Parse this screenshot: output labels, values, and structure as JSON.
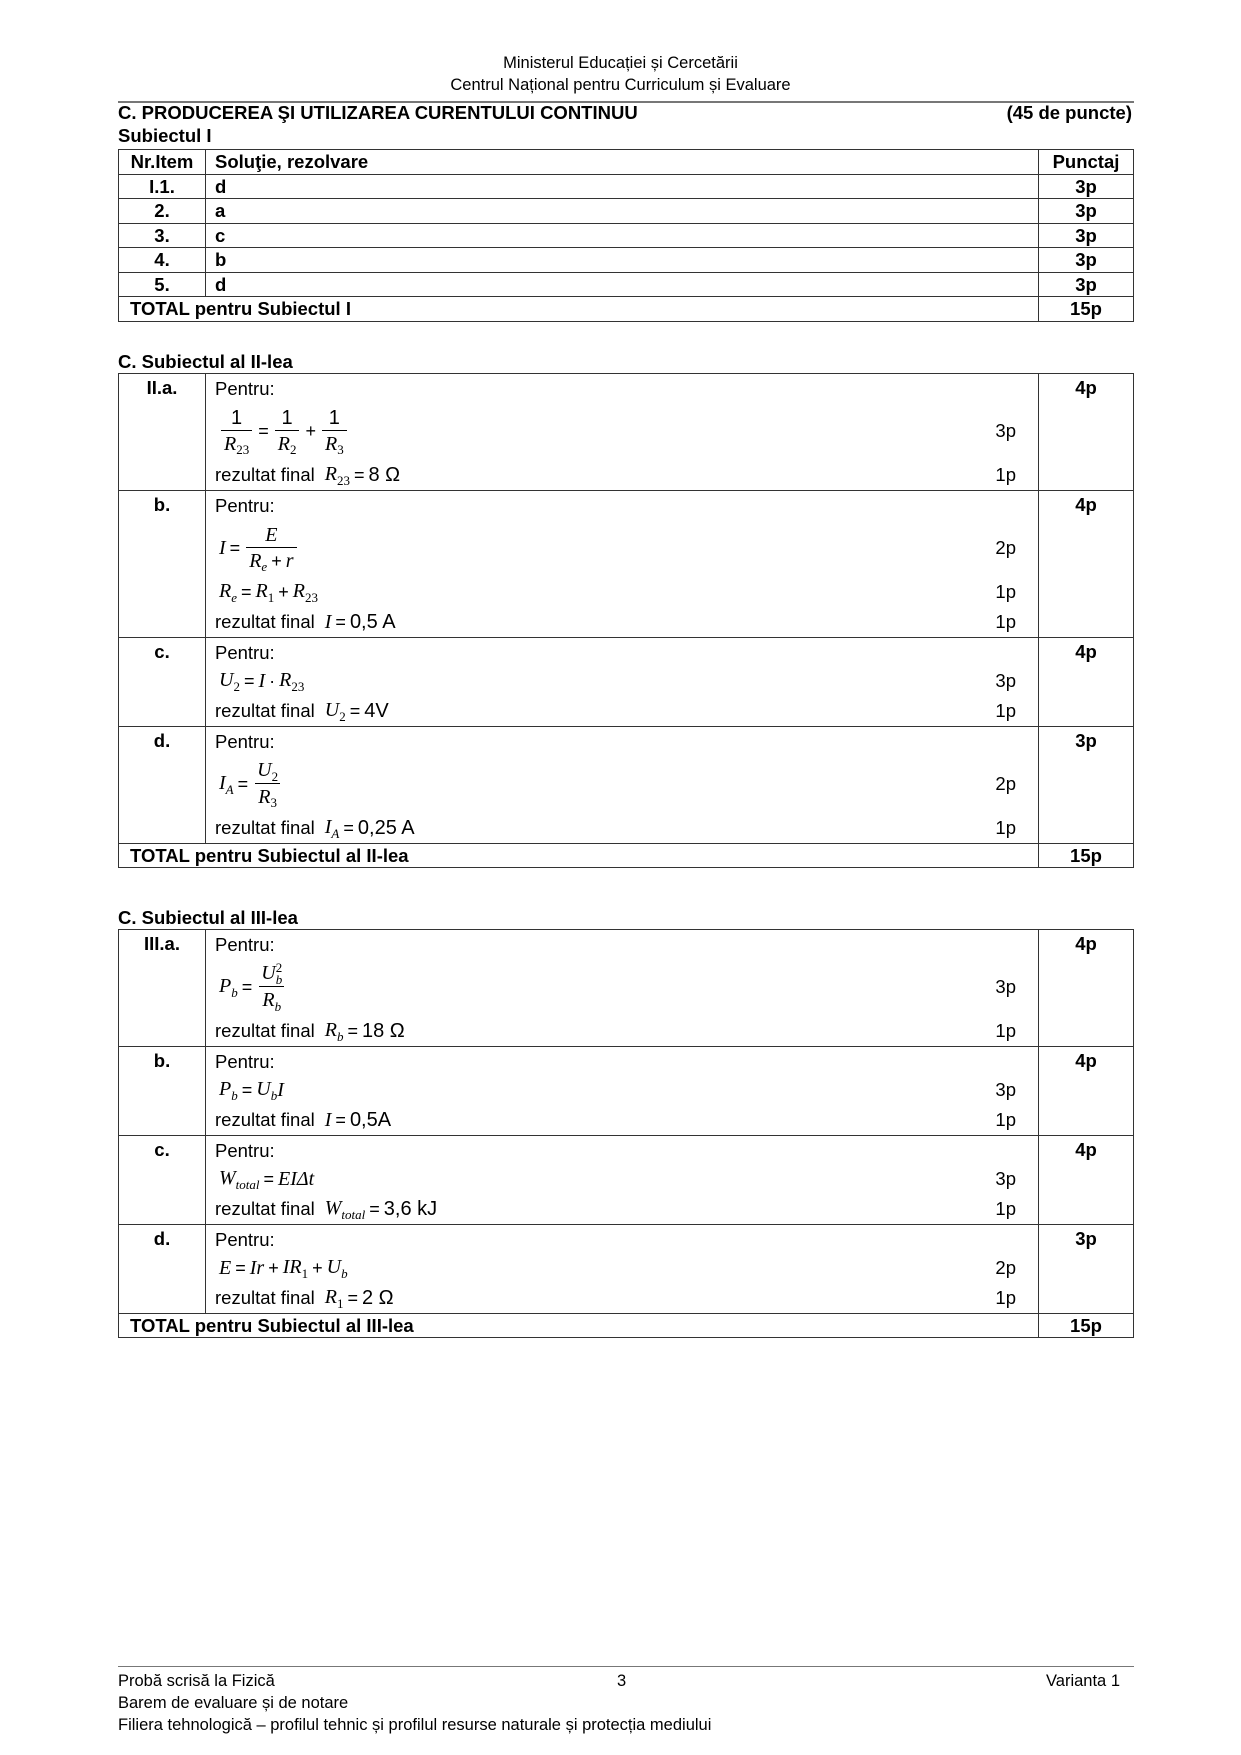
{
  "header": {
    "line1": "Ministerul Educației și Cercetării",
    "line2": "Centrul Național pentru Curriculum și Evaluare"
  },
  "section": {
    "title": "C. PRODUCEREA ŞI UTILIZAREA CURENTULUI CONTINUU",
    "points": "(45 de puncte)"
  },
  "subject1": {
    "heading": "Subiectul I",
    "columns": [
      "Nr.Item",
      "Soluţie, rezolvare",
      "Punctaj"
    ],
    "rows": [
      {
        "item": "I.1.",
        "answer": "d",
        "points": "3p"
      },
      {
        "item": "2.",
        "answer": "a",
        "points": "3p"
      },
      {
        "item": "3.",
        "answer": "c",
        "points": "3p"
      },
      {
        "item": "4.",
        "answer": "b",
        "points": "3p"
      },
      {
        "item": "5.",
        "answer": "d",
        "points": "3p"
      }
    ],
    "total": {
      "label": "TOTAL pentru Subiectul I",
      "points": "15p"
    }
  },
  "subject2": {
    "heading": "C. Subiectul al II-lea",
    "items": [
      {
        "label": "II.a.",
        "points": "4p",
        "lead": "Pentru:",
        "steps": [
          {
            "big": true,
            "points": "3p",
            "formula": [
              {
                "frac": [
                  [
                    {
                      "v": "1"
                    }
                  ],
                  [
                    {
                      "v": "R",
                      "i": 1,
                      "sub": "23"
                    }
                  ]
                ]
              },
              {
                "op": "="
              },
              {
                "frac": [
                  [
                    {
                      "v": "1"
                    }
                  ],
                  [
                    {
                      "v": "R",
                      "i": 1,
                      "sub": "2"
                    }
                  ]
                ]
              },
              {
                "op": "+"
              },
              {
                "frac": [
                  [
                    {
                      "v": "1"
                    }
                  ],
                  [
                    {
                      "v": "R",
                      "i": 1,
                      "sub": "3"
                    }
                  ]
                ]
              }
            ]
          },
          {
            "prefix": "rezultat final",
            "points": "1p",
            "formula": [
              {
                "v": "R",
                "i": 1,
                "sub": "23"
              },
              {
                "op": "="
              },
              {
                "v": "8 Ω"
              }
            ]
          }
        ]
      },
      {
        "label": "b.",
        "points": "4p",
        "lead": "Pentru:",
        "steps": [
          {
            "big": true,
            "points": "2p",
            "formula": [
              {
                "v": "I",
                "i": 1
              },
              {
                "op": "="
              },
              {
                "frac": [
                  [
                    {
                      "v": "E",
                      "i": 1
                    }
                  ],
                  [
                    {
                      "v": "R",
                      "i": 1,
                      "sub": "e",
                      "subi": 1
                    },
                    {
                      "op": "+"
                    },
                    {
                      "v": "r",
                      "i": 1
                    }
                  ]
                ]
              }
            ]
          },
          {
            "points": "1p",
            "formula": [
              {
                "v": "R",
                "i": 1,
                "sub": "e",
                "subi": 1
              },
              {
                "op": "="
              },
              {
                "v": "R",
                "i": 1,
                "sub": "1"
              },
              {
                "op": "+"
              },
              {
                "v": "R",
                "i": 1,
                "sub": "23"
              }
            ]
          },
          {
            "prefix": "rezultat final",
            "points": "1p",
            "formula": [
              {
                "v": "I",
                "i": 1
              },
              {
                "op": "="
              },
              {
                "v": "0,5 A"
              }
            ]
          }
        ]
      },
      {
        "label": "c.",
        "points": "4p",
        "lead": "Pentru:",
        "steps": [
          {
            "points": "3p",
            "formula": [
              {
                "v": "U",
                "i": 1,
                "sub": "2"
              },
              {
                "op": "="
              },
              {
                "v": "I",
                "i": 1
              },
              {
                "op": "·"
              },
              {
                "v": "R",
                "i": 1,
                "sub": "23"
              }
            ]
          },
          {
            "prefix": "rezultat final",
            "points": "1p",
            "formula": [
              {
                "v": "U",
                "i": 1,
                "sub": "2"
              },
              {
                "op": "="
              },
              {
                "v": "4V"
              }
            ]
          }
        ]
      },
      {
        "label": "d.",
        "points": "3p",
        "lead": "Pentru:",
        "steps": [
          {
            "big": true,
            "points": "2p",
            "formula": [
              {
                "v": "I",
                "i": 1,
                "sub": "A",
                "subi": 1
              },
              {
                "op": "="
              },
              {
                "frac": [
                  [
                    {
                      "v": "U",
                      "i": 1,
                      "sub": "2"
                    }
                  ],
                  [
                    {
                      "v": "R",
                      "i": 1,
                      "sub": "3"
                    }
                  ]
                ]
              }
            ]
          },
          {
            "prefix": "rezultat final",
            "points": "1p",
            "formula": [
              {
                "v": "I",
                "i": 1,
                "sub": "A",
                "subi": 1
              },
              {
                "op": "="
              },
              {
                "v": "0,25 A"
              }
            ]
          }
        ]
      }
    ],
    "total": {
      "label": "TOTAL pentru Subiectul al II-lea",
      "points": "15p"
    }
  },
  "subject3": {
    "heading": "C. Subiectul al III-lea",
    "items": [
      {
        "label": "III.a.",
        "points": "4p",
        "lead": "Pentru:",
        "steps": [
          {
            "big": true,
            "points": "3p",
            "formula": [
              {
                "v": "P",
                "i": 1,
                "sub": "b",
                "subi": 1
              },
              {
                "op": "="
              },
              {
                "frac": [
                  [
                    {
                      "v": "U",
                      "i": 1,
                      "sub": "b",
                      "subi": 1,
                      "sup": "2"
                    }
                  ],
                  [
                    {
                      "v": "R",
                      "i": 1,
                      "sub": "b",
                      "subi": 1
                    }
                  ]
                ]
              }
            ]
          },
          {
            "prefix": "rezultat final",
            "points": "1p",
            "formula": [
              {
                "v": "R",
                "i": 1,
                "sub": "b",
                "subi": 1
              },
              {
                "op": "="
              },
              {
                "v": "18 Ω"
              }
            ]
          }
        ]
      },
      {
        "label": "b.",
        "points": "4p",
        "lead": "Pentru:",
        "steps": [
          {
            "points": "3p",
            "formula": [
              {
                "v": "P",
                "i": 1,
                "sub": "b",
                "subi": 1
              },
              {
                "op": "="
              },
              {
                "v": "U",
                "i": 1,
                "sub": "b",
                "subi": 1
              },
              {
                "v": "I",
                "i": 1
              }
            ]
          },
          {
            "prefix": "rezultat final",
            "points": "1p",
            "formula": [
              {
                "v": "I",
                "i": 1
              },
              {
                "op": "="
              },
              {
                "v": "0,5A"
              }
            ]
          }
        ]
      },
      {
        "label": "c.",
        "points": "4p",
        "lead": "Pentru:",
        "steps": [
          {
            "points": "3p",
            "formula": [
              {
                "v": "W",
                "i": 1,
                "sub": "total",
                "subi": 1
              },
              {
                "op": "="
              },
              {
                "v": "EIΔt",
                "i": 1
              }
            ]
          },
          {
            "prefix": "rezultat final",
            "points": "1p",
            "formula": [
              {
                "v": "W",
                "i": 1,
                "sub": "total",
                "subi": 1
              },
              {
                "op": "="
              },
              {
                "v": "3,6 kJ"
              }
            ]
          }
        ]
      },
      {
        "label": "d.",
        "points": "3p",
        "lead": "Pentru:",
        "steps": [
          {
            "points": "2p",
            "formula": [
              {
                "v": "E",
                "i": 1
              },
              {
                "op": "="
              },
              {
                "v": "Ir",
                "i": 1
              },
              {
                "op": "+"
              },
              {
                "v": "IR",
                "i": 1,
                "sub": "1"
              },
              {
                "op": "+"
              },
              {
                "v": "U",
                "i": 1,
                "sub": "b",
                "subi": 1
              }
            ]
          },
          {
            "prefix": "rezultat final",
            "points": "1p",
            "formula": [
              {
                "v": "R",
                "i": 1,
                "sub": "1"
              },
              {
                "op": "="
              },
              {
                "v": "2 Ω"
              }
            ]
          }
        ]
      }
    ],
    "total": {
      "label": "TOTAL pentru Subiectul al III-lea",
      "points": "15p"
    }
  },
  "footer": {
    "exam": "Probă scrisă la Fizică",
    "page": "3",
    "variant": "Varianta 1",
    "line2": "Barem de evaluare și de notare",
    "line3": "Filiera tehnologică – profilul tehnic și profilul resurse naturale și protecția mediului"
  }
}
